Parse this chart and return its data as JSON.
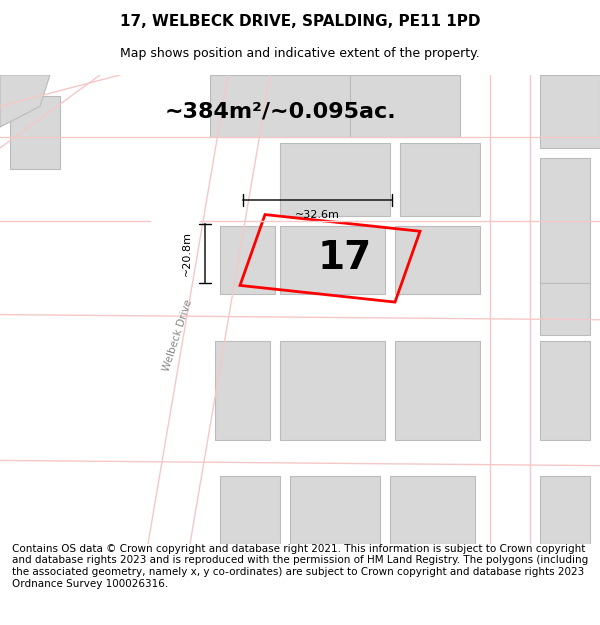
{
  "title": "17, WELBECK DRIVE, SPALDING, PE11 1PD",
  "subtitle": "Map shows position and indicative extent of the property.",
  "area_label": "~384m²/~0.095ac.",
  "property_number": "17",
  "dim_width": "~32.6m",
  "dim_height": "~20.8m",
  "street_label": "Welbeck Drive",
  "footer": "Contains OS data © Crown copyright and database right 2021. This information is subject to Crown copyright and database rights 2023 and is reproduced with the permission of HM Land Registry. The polygons (including the associated geometry, namely x, y co-ordinates) are subject to Crown copyright and database rights 2023 Ordnance Survey 100026316.",
  "bg_color": "#f5f5f5",
  "map_bg": "#f0eeee",
  "road_color": "#f5c8c8",
  "building_color": "#d8d8d8",
  "building_stroke": "#cccccc",
  "red_poly_color": "#ff0000",
  "black_color": "#000000",
  "title_fontsize": 11,
  "subtitle_fontsize": 9,
  "area_fontsize": 16,
  "number_fontsize": 28,
  "footer_fontsize": 7.5
}
